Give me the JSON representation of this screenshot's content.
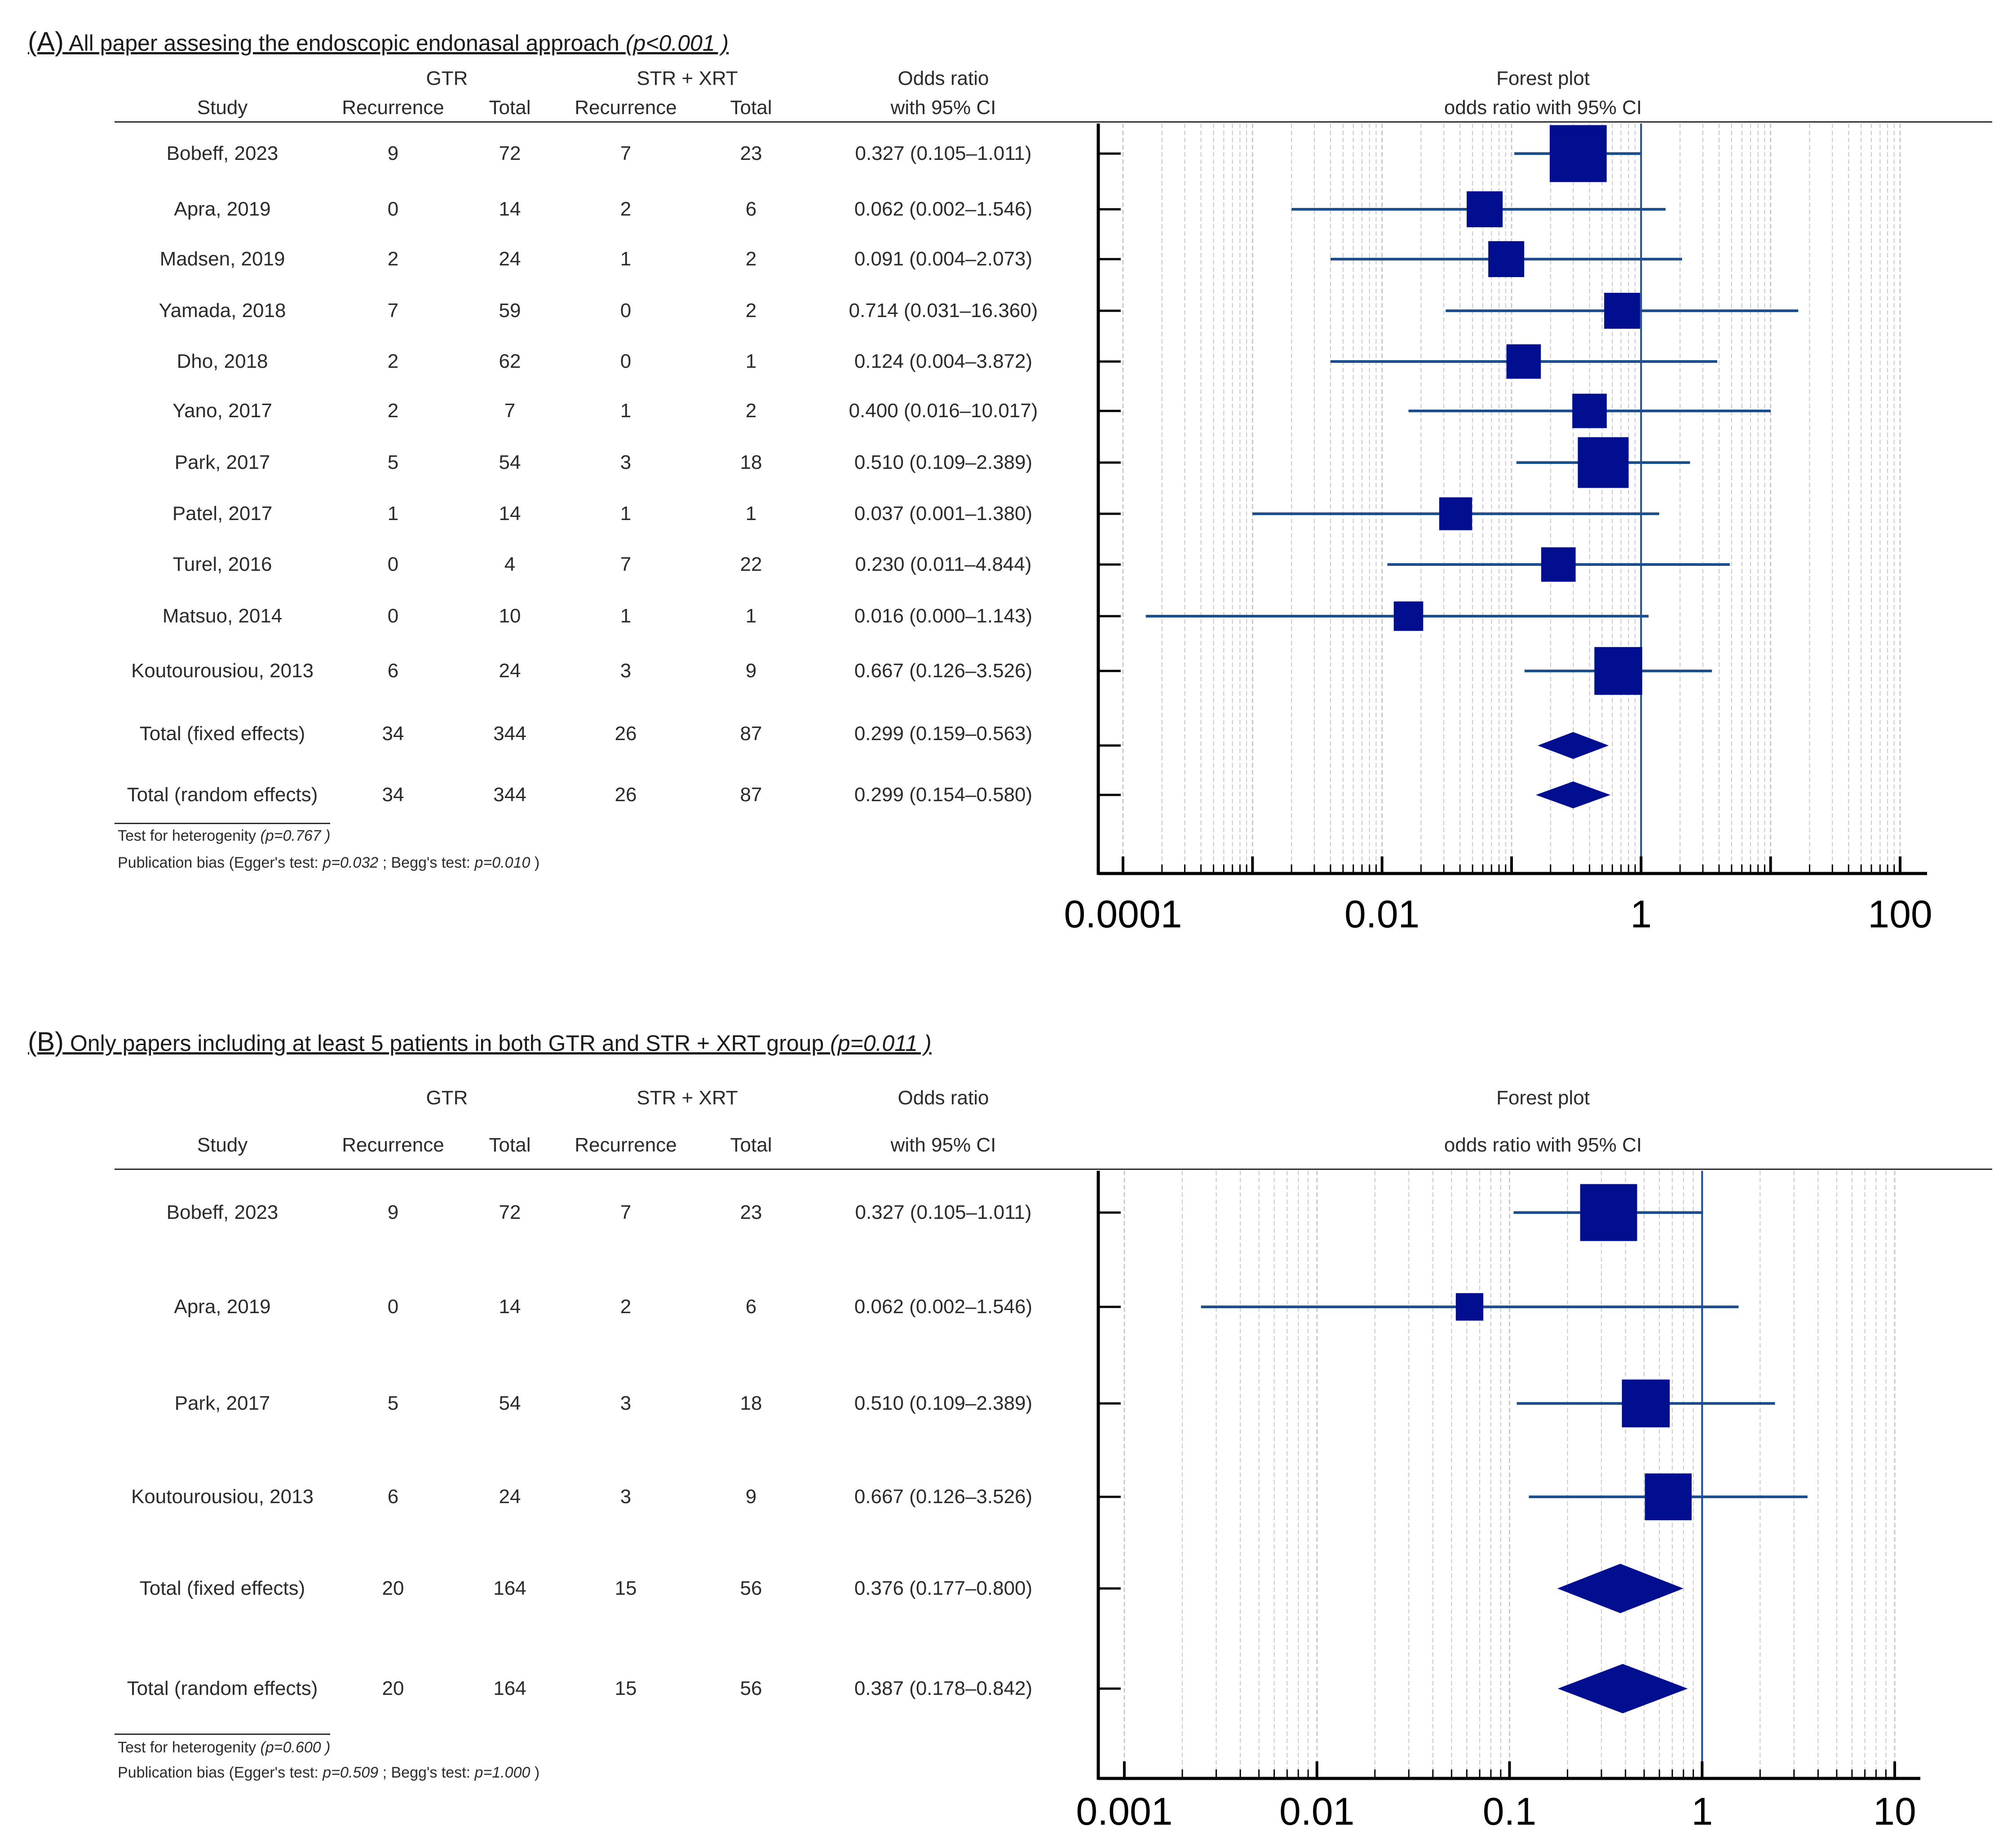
{
  "chart_data": [
    {
      "type": "forest",
      "panel_label": "(A)",
      "title": "All paper assesing the endoscopic endonasal approach",
      "title_pvalue": "(p<0.001 )",
      "headers": {
        "study": "Study",
        "gtr_group": "GTR",
        "str_group": "STR + XRT",
        "recurrence": "Recurrence",
        "total": "Total",
        "or_top": "Odds ratio",
        "or_bottom": "with 95% CI",
        "forest_top": "Forest plot",
        "forest_bottom": "odds ratio with 95% CI"
      },
      "xscale": "log",
      "xlim": [
        0.0001,
        100
      ],
      "xticks": [
        0.0001,
        0.01,
        1,
        100
      ],
      "xtick_labels": [
        "0.0001",
        "0.01",
        "1",
        "100"
      ],
      "reference_line": 1,
      "rows": [
        {
          "study": "Bobeff, 2023",
          "gtr_rec": "9",
          "gtr_total": "72",
          "str_rec": "7",
          "str_total": "23",
          "or_text": "0.327 (0.105–1.011)",
          "or": 0.327,
          "lo": 0.105,
          "hi": 1.011,
          "weight": 3.0
        },
        {
          "study": "Apra, 2019",
          "gtr_rec": "0",
          "gtr_total": "14",
          "str_rec": "2",
          "str_total": "6",
          "or_text": "0.062 (0.002–1.546)",
          "or": 0.062,
          "lo": 0.002,
          "hi": 1.546,
          "weight": 1.0
        },
        {
          "study": "Madsen, 2019",
          "gtr_rec": "2",
          "gtr_total": "24",
          "str_rec": "1",
          "str_total": "2",
          "or_text": "0.091 (0.004–2.073)",
          "or": 0.091,
          "lo": 0.004,
          "hi": 2.073,
          "weight": 1.0
        },
        {
          "study": "Yamada, 2018",
          "gtr_rec": "7",
          "gtr_total": "59",
          "str_rec": "0",
          "str_total": "2",
          "or_text": "0.714 (0.031–16.360)",
          "or": 0.714,
          "lo": 0.031,
          "hi": 16.36,
          "weight": 1.0
        },
        {
          "study": "Dho, 2018",
          "gtr_rec": "2",
          "gtr_total": "62",
          "str_rec": "0",
          "str_total": "1",
          "or_text": "0.124 (0.004–3.872)",
          "or": 0.124,
          "lo": 0.004,
          "hi": 3.872,
          "weight": 0.9
        },
        {
          "study": "Yano, 2017",
          "gtr_rec": "2",
          "gtr_total": "7",
          "str_rec": "1",
          "str_total": "2",
          "or_text": "0.400 (0.016–10.017)",
          "or": 0.4,
          "lo": 0.016,
          "hi": 10.017,
          "weight": 0.9
        },
        {
          "study": "Park, 2017",
          "gtr_rec": "5",
          "gtr_total": "54",
          "str_rec": "3",
          "str_total": "18",
          "or_text": "0.510 (0.109–2.389)",
          "or": 0.51,
          "lo": 0.109,
          "hi": 2.389,
          "weight": 2.3
        },
        {
          "study": "Patel, 2017",
          "gtr_rec": "1",
          "gtr_total": "14",
          "str_rec": "1",
          "str_total": "1",
          "or_text": "0.037 (0.001–1.380)",
          "or": 0.037,
          "lo": 0.001,
          "hi": 1.38,
          "weight": 0.8
        },
        {
          "study": "Turel, 2016",
          "gtr_rec": "0",
          "gtr_total": "4",
          "str_rec": "7",
          "str_total": "22",
          "or_text": "0.230 (0.011–4.844)",
          "or": 0.23,
          "lo": 0.011,
          "hi": 4.844,
          "weight": 0.9
        },
        {
          "study": "Matsuo, 2014",
          "gtr_rec": "0",
          "gtr_total": "10",
          "str_rec": "1",
          "str_total": "1",
          "or_text": "0.016 (0.000–1.143)",
          "or": 0.016,
          "lo": 0.00015,
          "hi": 1.143,
          "weight": 0.6
        },
        {
          "study": "Koutourousiou, 2013",
          "gtr_rec": "6",
          "gtr_total": "24",
          "str_rec": "3",
          "str_total": "9",
          "or_text": "0.667 (0.126–3.526)",
          "or": 0.667,
          "lo": 0.126,
          "hi": 3.526,
          "weight": 2.0
        }
      ],
      "totals": [
        {
          "study": "Total (fixed effects)",
          "gtr_rec": "34",
          "gtr_total": "344",
          "str_rec": "26",
          "str_total": "87",
          "or_text": "0.299 (0.159–0.563)",
          "or": 0.299,
          "lo": 0.159,
          "hi": 0.563
        },
        {
          "study": "Total (random effects)",
          "gtr_rec": "34",
          "gtr_total": "344",
          "str_rec": "26",
          "str_total": "87",
          "or_text": "0.299 (0.154–0.580)",
          "or": 0.299,
          "lo": 0.154,
          "hi": 0.58
        }
      ],
      "footnotes": {
        "heterogeneity_label": "Test for heterogenity",
        "heterogeneity_p": "(p=0.767 )",
        "bias_label": "Publication bias (Egger's test:",
        "egger_p": "p=0.032",
        "begg_label": "; Begg's test:",
        "begg_p": "p=0.010",
        "close": ")"
      }
    },
    {
      "type": "forest",
      "panel_label": "(B)",
      "title": "Only papers including at least 5 patients in both GTR and STR + XRT group",
      "title_pvalue": "(p=0.011 )",
      "headers": {
        "study": "Study",
        "gtr_group": "GTR",
        "str_group": "STR + XRT",
        "recurrence": "Recurrence",
        "total": "Total",
        "or_top": "Odds ratio",
        "or_bottom": "with 95% CI",
        "forest_top": "Forest plot",
        "forest_bottom": "odds ratio with 95% CI"
      },
      "xscale": "log",
      "xlim": [
        0.001,
        10
      ],
      "xticks": [
        0.001,
        0.01,
        0.1,
        1,
        10
      ],
      "xtick_labels": [
        "0.001",
        "0.01",
        "0.1",
        "1",
        "10"
      ],
      "reference_line": 1,
      "rows": [
        {
          "study": "Bobeff, 2023",
          "gtr_rec": "9",
          "gtr_total": "72",
          "str_rec": "7",
          "str_total": "23",
          "or_text": "0.327 (0.105–1.011)",
          "or": 0.327,
          "lo": 0.105,
          "hi": 1.011,
          "weight": 3.0
        },
        {
          "study": "Apra, 2019",
          "gtr_rec": "0",
          "gtr_total": "14",
          "str_rec": "2",
          "str_total": "6",
          "or_text": "0.062 (0.002–1.546)",
          "or": 0.062,
          "lo": 0.0025,
          "hi": 1.546,
          "weight": 0.5
        },
        {
          "study": "Park, 2017",
          "gtr_rec": "5",
          "gtr_total": "54",
          "str_rec": "3",
          "str_total": "18",
          "or_text": "0.510 (0.109–2.389)",
          "or": 0.51,
          "lo": 0.109,
          "hi": 2.389,
          "weight": 2.0
        },
        {
          "study": "Koutourousiou, 2013",
          "gtr_rec": "6",
          "gtr_total": "24",
          "str_rec": "3",
          "str_total": "9",
          "or_text": "0.667 (0.126–3.526)",
          "or": 0.667,
          "lo": 0.126,
          "hi": 3.526,
          "weight": 1.9
        }
      ],
      "totals": [
        {
          "study": "Total (fixed effects)",
          "gtr_rec": "20",
          "gtr_total": "164",
          "str_rec": "15",
          "str_total": "56",
          "or_text": "0.376 (0.177–0.800)",
          "or": 0.376,
          "lo": 0.177,
          "hi": 0.8
        },
        {
          "study": "Total (random effects)",
          "gtr_rec": "20",
          "gtr_total": "164",
          "str_rec": "15",
          "str_total": "56",
          "or_text": "0.387 (0.178–0.842)",
          "or": 0.387,
          "lo": 0.178,
          "hi": 0.842
        }
      ],
      "footnotes": {
        "heterogeneity_label": "Test for heterogenity",
        "heterogeneity_p": "(p=0.600 )",
        "bias_label": "Publication bias (Egger's test:",
        "egger_p": "p=0.509",
        "begg_label": "; Begg's test:",
        "begg_p": "p=1.000",
        "close": ")"
      }
    }
  ],
  "colors": {
    "marker": "#000e8f",
    "ci_line": "#1f4e8f",
    "axis": "#000000",
    "grid": "#c8c8c8",
    "ref_line": "#1f4e8f"
  }
}
